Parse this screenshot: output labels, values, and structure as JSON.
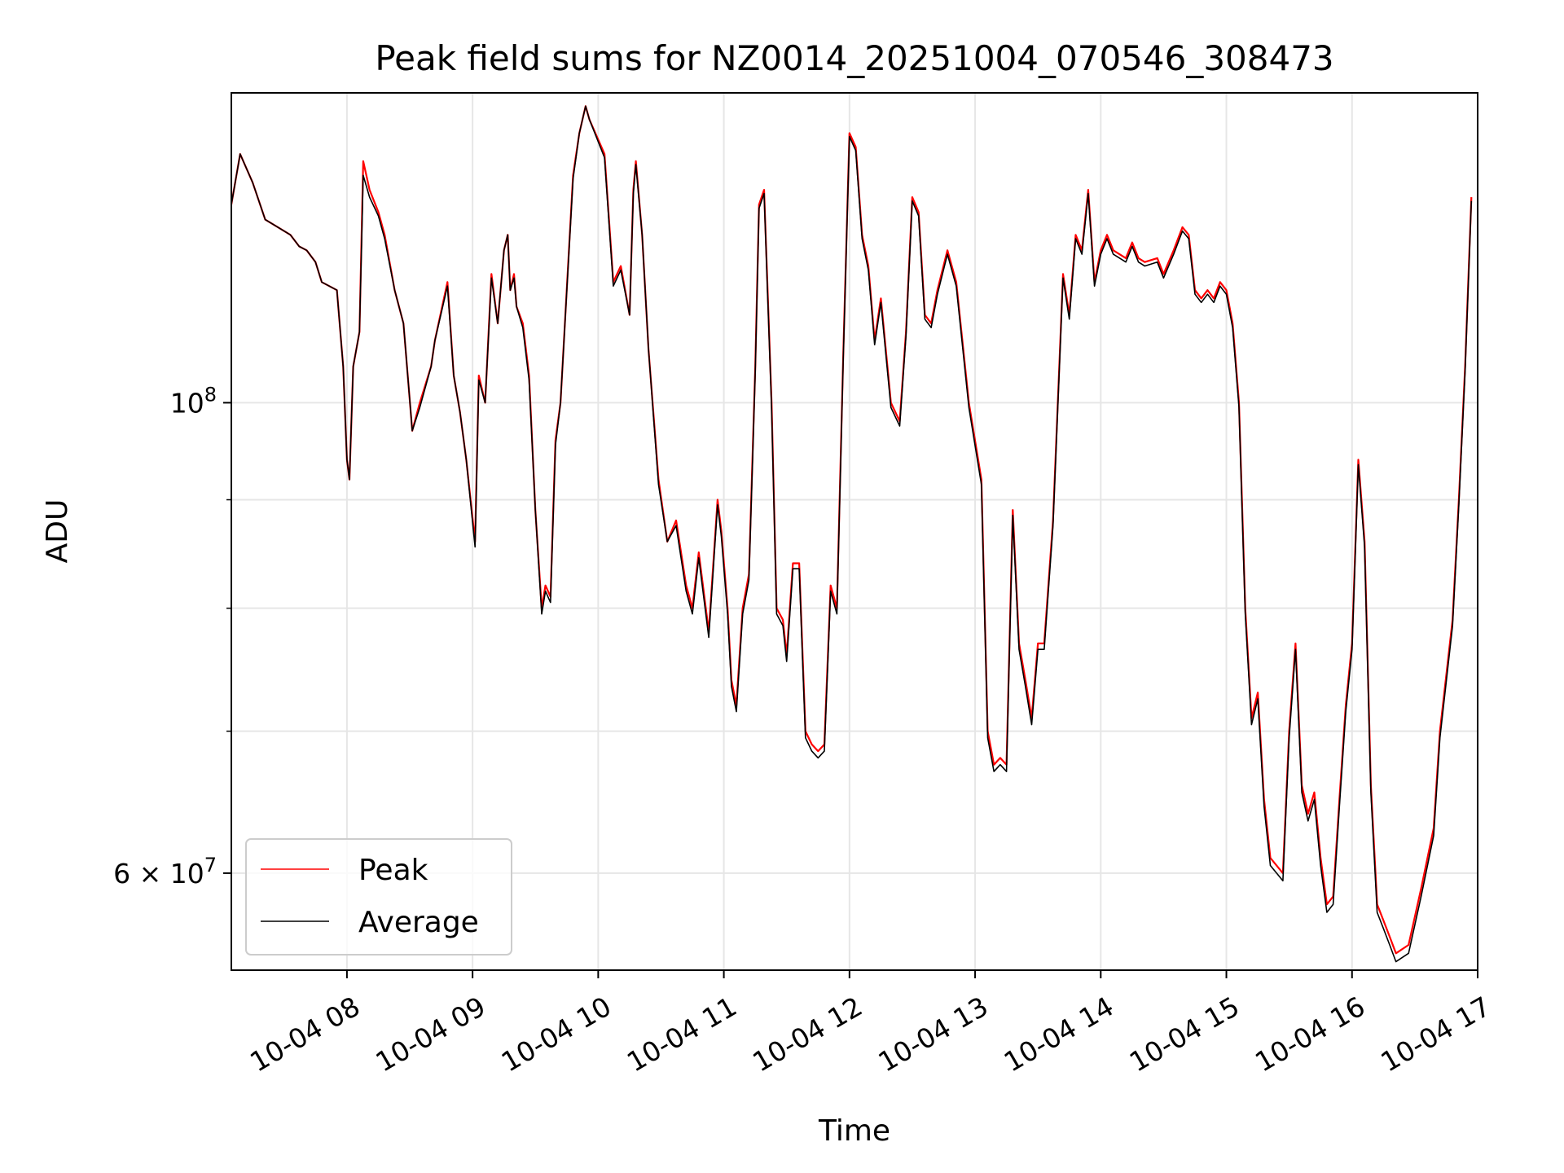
{
  "chart_data": {
    "type": "line",
    "title": "Peak field sums for NZ0014_20251004_070546_308473",
    "xlabel": "Time",
    "ylabel": "ADU",
    "yscale": "log",
    "ylim": [
      54000000,
      140000000
    ],
    "xlim_hours": [
      7.08,
      17.0
    ],
    "grid": true,
    "legend_position": "lower-left",
    "x_ticks": [
      {
        "hour": 8,
        "label": "10-04 08"
      },
      {
        "hour": 9,
        "label": "10-04 09"
      },
      {
        "hour": 10,
        "label": "10-04 10"
      },
      {
        "hour": 11,
        "label": "10-04 11"
      },
      {
        "hour": 12,
        "label": "10-04 12"
      },
      {
        "hour": 13,
        "label": "10-04 13"
      },
      {
        "hour": 14,
        "label": "10-04 14"
      },
      {
        "hour": 15,
        "label": "10-04 15"
      },
      {
        "hour": 16,
        "label": "10-04 16"
      },
      {
        "hour": 17,
        "label": "10-04 17"
      }
    ],
    "y_ticks_major": [
      {
        "value": 100000000,
        "base": "10",
        "exp": "8",
        "mult": ""
      },
      {
        "value": 60000000,
        "base": "10",
        "exp": "7",
        "mult": "6 × "
      }
    ],
    "y_gridlines_minor": [
      70000000,
      80000000,
      90000000
    ],
    "x_hours": [
      7.08,
      7.15,
      7.25,
      7.35,
      7.45,
      7.55,
      7.62,
      7.68,
      7.75,
      7.8,
      7.92,
      7.97,
      8.0,
      8.02,
      8.05,
      8.1,
      8.13,
      8.18,
      8.25,
      8.3,
      8.38,
      8.45,
      8.52,
      8.58,
      8.67,
      8.7,
      8.8,
      8.85,
      8.9,
      8.95,
      9.02,
      9.05,
      9.1,
      9.15,
      9.2,
      9.25,
      9.28,
      9.3,
      9.33,
      9.35,
      9.4,
      9.45,
      9.5,
      9.55,
      9.58,
      9.62,
      9.66,
      9.7,
      9.8,
      9.85,
      9.9,
      9.93,
      10.05,
      10.12,
      10.18,
      10.25,
      10.28,
      10.3,
      10.35,
      10.4,
      10.48,
      10.55,
      10.62,
      10.7,
      10.75,
      10.8,
      10.88,
      10.95,
      10.98,
      11.03,
      11.06,
      11.1,
      11.15,
      11.2,
      11.25,
      11.28,
      11.32,
      11.38,
      11.42,
      11.47,
      11.5,
      11.55,
      11.6,
      11.65,
      11.7,
      11.75,
      11.8,
      11.85,
      11.9,
      11.95,
      12.0,
      12.05,
      12.1,
      12.15,
      12.2,
      12.25,
      12.33,
      12.4,
      12.45,
      12.5,
      12.55,
      12.6,
      12.65,
      12.7,
      12.78,
      12.85,
      12.95,
      13.05,
      13.1,
      13.15,
      13.2,
      13.25,
      13.3,
      13.35,
      13.4,
      13.45,
      13.5,
      13.55,
      13.62,
      13.7,
      13.75,
      13.8,
      13.85,
      13.9,
      13.95,
      14.0,
      14.05,
      14.1,
      14.2,
      14.25,
      14.3,
      14.35,
      14.45,
      14.5,
      14.58,
      14.65,
      14.7,
      14.75,
      14.8,
      14.85,
      14.9,
      14.95,
      15.0,
      15.05,
      15.1,
      15.15,
      15.2,
      15.25,
      15.3,
      15.35,
      15.45,
      15.5,
      15.55,
      15.6,
      15.65,
      15.7,
      15.75,
      15.8,
      15.85,
      15.9,
      15.95,
      16.0,
      16.05,
      16.1,
      16.15,
      16.2,
      16.25,
      16.3,
      16.35,
      16.45,
      16.55,
      16.65,
      16.7,
      16.8,
      16.85,
      16.9,
      16.95,
      17.0
    ],
    "series": [
      {
        "name": "Peak",
        "color": "#ff0000",
        "values": [
          124000000,
          131000000,
          127000000,
          122000000,
          121000000,
          120000000,
          118500000,
          118000000,
          116500000,
          114000000,
          113000000,
          104000000,
          94000000,
          92000000,
          104000000,
          108000000,
          130000000,
          126000000,
          123000000,
          120000000,
          113000000,
          109000000,
          97000000,
          100000000,
          104000000,
          107000000,
          114000000,
          103000000,
          99000000,
          94000000,
          86000000,
          103000000,
          100000000,
          115000000,
          109000000,
          118000000,
          120000000,
          113000000,
          115000000,
          111000000,
          109000000,
          103000000,
          89000000,
          80000000,
          82000000,
          81000000,
          96000000,
          100000000,
          128000000,
          134000000,
          138000000,
          136000000,
          131000000,
          114000000,
          116000000,
          110000000,
          126000000,
          130000000,
          120000000,
          106000000,
          92000000,
          86000000,
          88000000,
          82000000,
          80000000,
          85000000,
          78000000,
          90000000,
          87000000,
          80000000,
          74000000,
          72000000,
          80000000,
          83000000,
          104000000,
          124000000,
          126000000,
          100000000,
          80000000,
          79000000,
          76000000,
          84000000,
          84000000,
          70000000,
          69000000,
          68500000,
          69000000,
          82000000,
          80000000,
          105000000,
          134000000,
          132000000,
          120000000,
          116000000,
          107000000,
          112000000,
          100000000,
          98000000,
          108000000,
          125000000,
          123000000,
          110000000,
          109000000,
          113000000,
          118000000,
          114000000,
          100000000,
          92000000,
          70000000,
          67500000,
          68000000,
          67500000,
          89000000,
          77000000,
          74000000,
          71000000,
          77000000,
          77000000,
          88000000,
          115000000,
          110000000,
          120000000,
          118000000,
          126000000,
          114000000,
          118000000,
          120000000,
          118000000,
          117000000,
          119000000,
          117000000,
          116500000,
          117000000,
          115000000,
          118000000,
          121000000,
          120000000,
          113000000,
          112000000,
          113000000,
          112000000,
          114000000,
          113000000,
          109000000,
          100000000,
          80000000,
          71000000,
          73000000,
          65000000,
          61000000,
          60000000,
          70000000,
          77000000,
          66000000,
          64000000,
          65500000,
          61000000,
          58000000,
          58500000,
          65000000,
          72000000,
          77000000,
          94000000,
          86000000,
          66000000,
          58000000,
          57000000,
          56000000,
          55000000,
          55500000,
          59000000,
          63000000,
          70000000,
          79000000,
          90000000,
          104000000,
          125000000
        ]
      },
      {
        "name": "Average",
        "color": "#000000",
        "values": [
          124000000,
          131000000,
          127000000,
          122000000,
          121000000,
          120000000,
          118500000,
          118000000,
          116500000,
          114000000,
          113000000,
          104000000,
          94000000,
          92000000,
          104000000,
          108000000,
          128000000,
          125000000,
          122500000,
          119500000,
          113000000,
          109000000,
          97000000,
          99500000,
          104000000,
          107000000,
          113500000,
          103000000,
          99000000,
          94000000,
          85500000,
          102500000,
          100000000,
          114500000,
          109000000,
          118000000,
          120000000,
          113000000,
          114500000,
          111000000,
          108500000,
          102500000,
          89000000,
          79500000,
          81500000,
          80500000,
          95500000,
          100000000,
          127500000,
          134000000,
          138000000,
          136000000,
          130500000,
          113500000,
          115500000,
          110000000,
          125500000,
          129500000,
          120000000,
          106000000,
          91500000,
          86000000,
          87500000,
          81500000,
          79500000,
          84500000,
          77500000,
          89500000,
          86500000,
          79500000,
          73500000,
          71500000,
          79500000,
          82500000,
          103500000,
          123500000,
          125500000,
          99500000,
          79500000,
          78500000,
          75500000,
          83500000,
          83500000,
          69500000,
          68500000,
          68000000,
          68500000,
          81500000,
          79500000,
          104500000,
          133500000,
          131500000,
          119500000,
          115500000,
          106500000,
          111500000,
          99500000,
          97500000,
          107500000,
          124500000,
          122500000,
          109500000,
          108500000,
          112500000,
          117500000,
          113500000,
          99500000,
          91500000,
          69500000,
          67000000,
          67500000,
          67000000,
          88500000,
          76500000,
          73500000,
          70500000,
          76500000,
          76500000,
          87500000,
          114500000,
          109500000,
          119500000,
          117500000,
          125500000,
          113500000,
          117500000,
          119500000,
          117500000,
          116500000,
          118500000,
          116500000,
          116000000,
          116500000,
          114500000,
          117500000,
          120500000,
          119500000,
          112500000,
          111500000,
          112500000,
          111500000,
          113500000,
          112500000,
          108500000,
          99500000,
          79500000,
          70500000,
          72500000,
          64500000,
          60500000,
          59500000,
          69500000,
          76500000,
          65500000,
          63500000,
          65000000,
          60500000,
          57500000,
          58000000,
          64500000,
          71500000,
          76500000,
          93500000,
          85500000,
          65500000,
          57500000,
          56500000,
          55500000,
          54500000,
          55000000,
          58500000,
          62500000,
          69500000,
          78500000,
          89500000,
          103500000,
          124500000
        ]
      }
    ]
  }
}
